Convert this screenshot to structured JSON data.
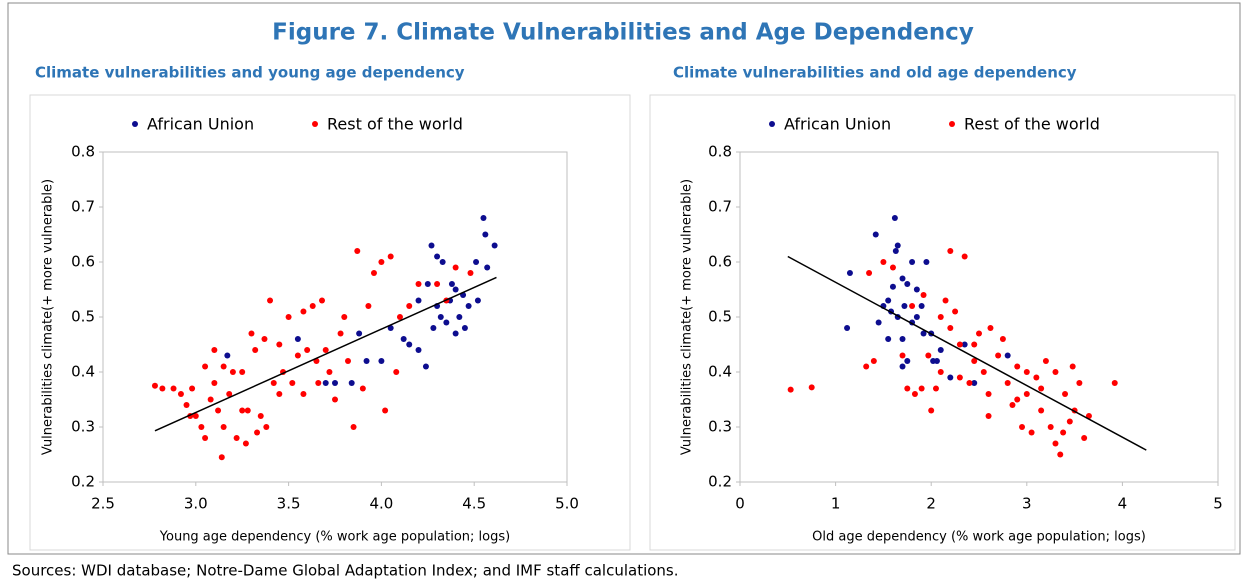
{
  "title": "Figure 7. Climate Vulnerabilities and Age Dependency",
  "source": "Sources: WDI database; Notre-Dame Global Adaptation Index; and IMF staff calculations.",
  "chart_data": [
    {
      "type": "scatter",
      "title": "Climate vulnerabilities and young age dependency",
      "xlabel": "Young age dependency (% work age population; logs)",
      "ylabel": "Vulnerabilities climate(+ more vulnerable)",
      "xlim": [
        2.5,
        5.0
      ],
      "ylim": [
        0.2,
        0.8
      ],
      "xticks": [
        2.5,
        {
          "value": 3,
          "label": "3.0"
        },
        3.5,
        {
          "value": 4,
          "label": "4.0"
        },
        4.5,
        {
          "value": 5,
          "label": "5.0"
        }
      ],
      "yticks": [
        0.2,
        0.3,
        0.4,
        0.5,
        0.6,
        0.7,
        0.8
      ],
      "legend": "top",
      "series": [
        {
          "name": "African Union",
          "color": "#0d0d8f",
          "x": [
            4.55,
            4.56,
            4.61,
            4.27,
            4.3,
            4.33,
            4.51,
            4.57,
            4.25,
            4.38,
            4.4,
            4.44,
            4.37,
            4.2,
            4.47,
            4.3,
            4.52,
            4.42,
            4.35,
            4.45,
            4.4,
            4.32,
            4.28,
            4.12,
            4.15,
            4.2,
            4.24,
            4.05,
            3.92,
            3.88,
            3.7,
            3.75,
            3.55,
            3.17,
            3.84,
            4.0
          ],
          "y": [
            0.68,
            0.65,
            0.63,
            0.63,
            0.61,
            0.6,
            0.6,
            0.59,
            0.56,
            0.56,
            0.55,
            0.54,
            0.53,
            0.53,
            0.52,
            0.52,
            0.53,
            0.5,
            0.49,
            0.48,
            0.47,
            0.5,
            0.48,
            0.46,
            0.45,
            0.44,
            0.41,
            0.48,
            0.42,
            0.47,
            0.38,
            0.38,
            0.46,
            0.43,
            0.38,
            0.42
          ]
        },
        {
          "name": "Rest of the world",
          "color": "#ff0000",
          "x": [
            2.78,
            2.82,
            2.88,
            2.92,
            2.95,
            2.98,
            3.0,
            3.03,
            3.05,
            3.08,
            3.1,
            3.1,
            3.12,
            3.14,
            3.15,
            3.18,
            3.2,
            3.22,
            3.25,
            3.27,
            3.28,
            3.3,
            3.32,
            3.33,
            3.35,
            3.37,
            3.4,
            3.42,
            3.45,
            3.47,
            3.5,
            3.52,
            3.55,
            3.58,
            3.6,
            3.63,
            3.65,
            3.68,
            3.7,
            3.72,
            3.75,
            3.78,
            3.8,
            3.82,
            3.85,
            3.87,
            3.9,
            3.93,
            3.96,
            4.0,
            4.02,
            4.05,
            4.08,
            4.1,
            4.15,
            4.2,
            4.3,
            4.35,
            4.4,
            4.48,
            3.25,
            3.38,
            3.58,
            3.15,
            2.97,
            3.05,
            3.45,
            3.66
          ],
          "y": [
            0.375,
            0.37,
            0.37,
            0.36,
            0.34,
            0.37,
            0.32,
            0.3,
            0.28,
            0.35,
            0.38,
            0.44,
            0.33,
            0.245,
            0.3,
            0.36,
            0.4,
            0.28,
            0.33,
            0.27,
            0.33,
            0.47,
            0.44,
            0.29,
            0.32,
            0.46,
            0.53,
            0.38,
            0.36,
            0.4,
            0.5,
            0.38,
            0.43,
            0.51,
            0.44,
            0.52,
            0.42,
            0.53,
            0.44,
            0.4,
            0.35,
            0.47,
            0.5,
            0.42,
            0.3,
            0.62,
            0.37,
            0.52,
            0.58,
            0.6,
            0.33,
            0.61,
            0.4,
            0.5,
            0.52,
            0.56,
            0.56,
            0.53,
            0.59,
            0.58,
            0.4,
            0.3,
            0.36,
            0.41,
            0.32,
            0.41,
            0.45,
            0.38
          ]
        }
      ],
      "trend_line": {
        "x": [
          2.78,
          4.62
        ],
        "y": [
          0.293,
          0.572
        ],
        "color": "#000000"
      }
    },
    {
      "type": "scatter",
      "title": "Climate vulnerabilities and old age dependency",
      "xlabel": "Old age dependency (% work age population; logs)",
      "ylabel": "Vulnerabilities climate(+ more vulnerable)",
      "xlim": [
        0,
        5
      ],
      "ylim": [
        0.2,
        0.8
      ],
      "xticks": [
        0,
        1,
        2,
        3,
        4,
        5
      ],
      "yticks": [
        0.2,
        0.3,
        0.4,
        0.5,
        0.6,
        0.7,
        0.8
      ],
      "legend": "top",
      "series": [
        {
          "name": "African Union",
          "color": "#0d0d8f",
          "x": [
            1.62,
            1.42,
            1.65,
            1.63,
            1.15,
            1.95,
            1.8,
            1.7,
            1.75,
            1.6,
            1.85,
            1.55,
            1.5,
            1.9,
            1.72,
            1.65,
            1.45,
            1.8,
            1.12,
            1.92,
            2.0,
            1.7,
            1.55,
            2.1,
            2.02,
            2.06,
            1.75,
            1.7,
            2.35,
            2.2,
            2.45,
            2.8,
            1.58,
            1.85
          ],
          "y": [
            0.68,
            0.65,
            0.63,
            0.62,
            0.58,
            0.6,
            0.6,
            0.57,
            0.56,
            0.555,
            0.55,
            0.53,
            0.52,
            0.52,
            0.52,
            0.5,
            0.49,
            0.49,
            0.48,
            0.47,
            0.47,
            0.46,
            0.46,
            0.44,
            0.42,
            0.42,
            0.42,
            0.41,
            0.45,
            0.39,
            0.38,
            0.43,
            0.51,
            0.5
          ]
        },
        {
          "name": "Rest of the world",
          "color": "#ff0000",
          "x": [
            0.53,
            0.75,
            1.32,
            1.4,
            1.35,
            1.5,
            1.6,
            1.8,
            1.75,
            1.83,
            1.9,
            2.0,
            2.05,
            2.1,
            2.15,
            2.2,
            2.25,
            2.3,
            2.35,
            2.4,
            2.45,
            2.5,
            2.55,
            2.6,
            2.62,
            2.7,
            2.75,
            2.8,
            2.85,
            2.9,
            2.95,
            3.0,
            3.05,
            3.1,
            3.15,
            3.2,
            3.25,
            3.3,
            3.35,
            3.4,
            3.45,
            3.5,
            3.55,
            3.6,
            3.65,
            3.92,
            3.3,
            3.0,
            2.6,
            2.3,
            2.2,
            1.92,
            1.7,
            3.48,
            3.38,
            2.9,
            3.15,
            2.45,
            2.1,
            1.97
          ],
          "y": [
            0.368,
            0.372,
            0.41,
            0.42,
            0.58,
            0.6,
            0.59,
            0.52,
            0.37,
            0.36,
            0.37,
            0.33,
            0.37,
            0.5,
            0.53,
            0.62,
            0.51,
            0.45,
            0.61,
            0.38,
            0.42,
            0.47,
            0.4,
            0.32,
            0.48,
            0.43,
            0.46,
            0.38,
            0.34,
            0.41,
            0.3,
            0.36,
            0.29,
            0.39,
            0.33,
            0.42,
            0.3,
            0.27,
            0.25,
            0.36,
            0.31,
            0.33,
            0.38,
            0.28,
            0.32,
            0.38,
            0.4,
            0.4,
            0.36,
            0.39,
            0.48,
            0.54,
            0.43,
            0.41,
            0.29,
            0.35,
            0.37,
            0.45,
            0.4,
            0.43
          ]
        }
      ],
      "trend_line": {
        "x": [
          0.5,
          4.25
        ],
        "y": [
          0.61,
          0.258
        ],
        "color": "#000000"
      }
    }
  ]
}
